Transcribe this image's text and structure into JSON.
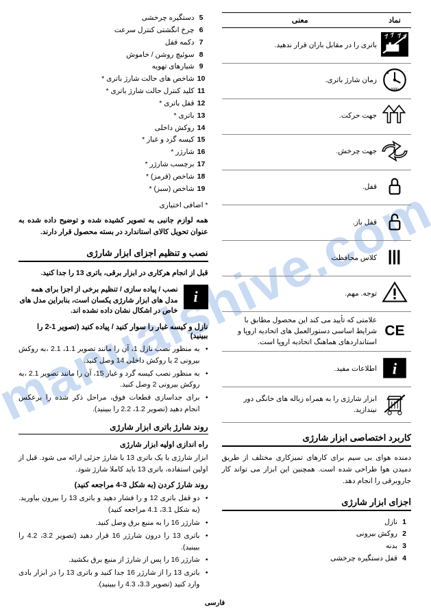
{
  "symbolTable": {
    "headers": {
      "symbol": "نماد",
      "meaning": "معنی"
    },
    "rows": [
      {
        "meaning": "باتری را در مقابل باران قرار ندهید."
      },
      {
        "meaning": "زمان شارژ باتری."
      },
      {
        "meaning": "جهت حرکت."
      },
      {
        "meaning": "جهت چرخش."
      },
      {
        "meaning": "قفل."
      },
      {
        "meaning": "قفل باز."
      },
      {
        "meaning": "کلاس محافظت"
      },
      {
        "meaning": "توجه. مهم."
      },
      {
        "meaning": "علامتی که تأیید می کند این محصول مطابق با شرایط اساسی دستورالعمل های اتحادیه اروپا و استانداردهای هماهنگ اتحادیه اروپا است."
      },
      {
        "meaning": "اطلاعات مفید."
      },
      {
        "meaning": "ابزار شارژی را به همراه زباله های خانگی دور نیندازید."
      }
    ]
  },
  "applicationSection": {
    "title": "کاربرد اختصاصی ابزار شارژی",
    "text": "دمنده هوای بی سیم برای کارهای تمیزکاری مختلف از طریق دمیدن هوا طراحی شده است. همچنین این ابزار می تواند کار جاروبرقی را انجام دهد."
  },
  "partsSection": {
    "title": "اجزای ابزار شارژی",
    "items": [
      {
        "num": "1",
        "txt": "نازل"
      },
      {
        "num": "2",
        "txt": "روکش بیرونی"
      },
      {
        "num": "3",
        "txt": "بدنه"
      },
      {
        "num": "4",
        "txt": "قفل دستگیره چرخشی"
      },
      {
        "num": "5",
        "txt": "دستگیره چرخشی"
      },
      {
        "num": "6",
        "txt": "چرخ انگشتی کنترل سرعت"
      },
      {
        "num": "7",
        "txt": "دکمه قفل"
      },
      {
        "num": "8",
        "txt": "سوئیچ روشن / خاموش"
      },
      {
        "num": "9",
        "txt": "شیارهای تهویه"
      },
      {
        "num": "10",
        "txt": "شاخص های حالت شارژ باتری *"
      },
      {
        "num": "11",
        "txt": "کلید کنترل حالت شارژ باتری *"
      },
      {
        "num": "12",
        "txt": "قفل باتری *"
      },
      {
        "num": "13",
        "txt": "باتری *"
      },
      {
        "num": "14",
        "txt": "روکش داخلی"
      },
      {
        "num": "15",
        "txt": "کیسه گرد و غبار *"
      },
      {
        "num": "16",
        "txt": "شارژر *"
      },
      {
        "num": "17",
        "txt": "برچسب شارژر *"
      },
      {
        "num": "18",
        "txt": "شاخص (قرمز) *"
      },
      {
        "num": "19",
        "txt": "شاخص (سبز) *"
      }
    ],
    "footnote": "* اضافی اختیاری",
    "note": "همه لوازم جانبی به تصویر کشیده شده و توضیح داده شده به عنوان تحویل کالای استاندارد در بسته محصول قرار دارند."
  },
  "setupSection": {
    "title": "نصب و تنظیم اجزای ابزار شارژی",
    "warning": "قبل از انجام هرکاری در ابزار برقی، باتری 13 را جدا کنید.",
    "infoBox": "نصب / پیاده سازی / تنظیم برخی از اجزا برای همه مدل های ابزار شارژی یکسان است، بنابراین مدل های خاص در اشکال نشان داده نشده اند.",
    "nozzleTitle": "نازل و کیسه غبار را سوار کنید / پیاده کنید (تصویر 1-2 را ببینید)",
    "nozzleBullets": [
      "به منظور نصب نازل 1، آن را مانند تصویر 1.1، 2.1 ،به روکش بیرونی 2 یا روکش داخلی 14 وصل کنید.",
      "به منظور نصب کیسه گرد و غبار 15، آن را مانند تصویر 2.1 ،به روکش بیرونی 2 وصل کنید.",
      "برای جداسازی قطعات فوق، مراحل ذکر شده را برعکس انجام دهید (تصویر 1.2، 2.2 را ببینید)."
    ]
  },
  "chargingSection": {
    "title": "روند شارژ باتری ابزار شارژی",
    "subtitle1": "راه اندازی اولیه ابزار شارژی",
    "text1": "ابزار شارژی با یک باتری 13 با شارژ جزئی ارائه می شود. قبل از اولین استفاده، باتری 13 باید کاملا شارژ شود.",
    "subtitle2": "روند شارژ کردن (به شکل 3-4 مراجعه کنید)",
    "bullets": [
      "دو قفل باتری 12 و را فشار دهید و باتری 13 را بیرون بیاورید.(به شکل 3.1، 4.1 مراجعه کنید)",
      "شارژر 16 را به منبع برق وصل کنید.",
      "باتری 13 را درون شارژر 16 قرار دهید (تصویر 3.2، 4.2 را ببینید).",
      "شارژر 16 را پس از شارژ از منبع برق بکشید.",
      "باتری 13 را از شارژر 16 جدا کنید و باتری 13 را در ابزار بادی وارد کنید (تصویر 3.3، 4.3 را ببینید)."
    ]
  },
  "footerLang": "فارسی"
}
